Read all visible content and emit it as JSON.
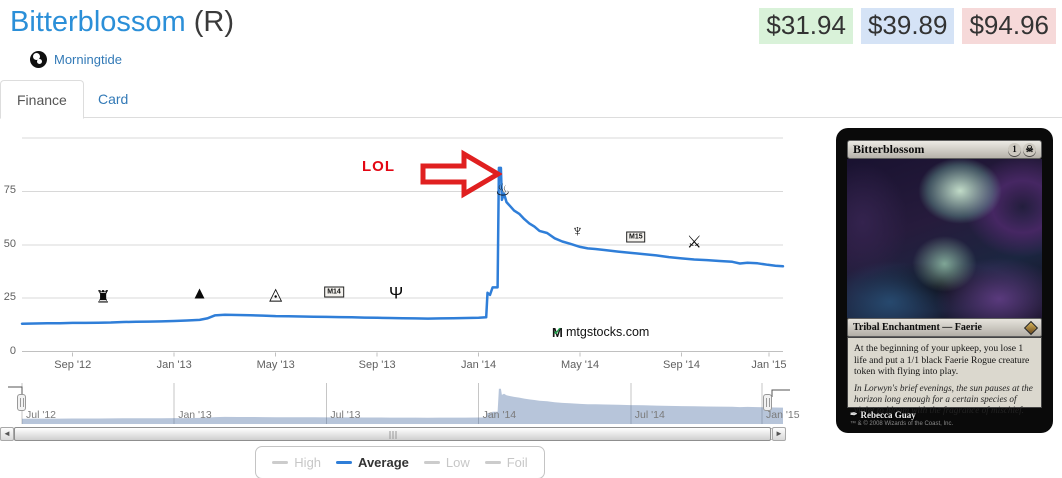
{
  "header": {
    "title": "Bitterblossom",
    "rarity": "(R)",
    "set_name": "Morningtide"
  },
  "price_badges": [
    {
      "kind": "low",
      "value": "$31.94",
      "bg": "#d9f2d9"
    },
    {
      "kind": "average",
      "value": "$39.89",
      "bg": "#d5e3f6"
    },
    {
      "kind": "high",
      "value": "$94.96",
      "bg": "#f6d9d9"
    }
  ],
  "tabs": [
    {
      "label": "Finance",
      "active": true
    },
    {
      "label": "Card",
      "active": false
    }
  ],
  "chart_data": {
    "type": "line",
    "title": "",
    "xlabel": "",
    "ylabel": "",
    "ylim": [
      0,
      100
    ],
    "yticks_labeled": [
      0,
      25,
      50,
      75
    ],
    "gridlines": [
      0,
      25,
      50,
      75,
      100
    ],
    "x_months_range": [
      0,
      30
    ],
    "series": [
      {
        "name": "Average",
        "color": "#2f7ed8",
        "points": [
          [
            0,
            13
          ],
          [
            0.5,
            13.1
          ],
          [
            1,
            13.2
          ],
          [
            1.5,
            13.2
          ],
          [
            2,
            13.4
          ],
          [
            2.5,
            13.4
          ],
          [
            3,
            13.5
          ],
          [
            3.5,
            13.6
          ],
          [
            4,
            13.8
          ],
          [
            4.5,
            13.9
          ],
          [
            5,
            14
          ],
          [
            5.5,
            14.1
          ],
          [
            6,
            14.3
          ],
          [
            6.5,
            14.5
          ],
          [
            7,
            14.8
          ],
          [
            7.3,
            15.5
          ],
          [
            7.6,
            16.9
          ],
          [
            8,
            17.2
          ],
          [
            8.5,
            17.1
          ],
          [
            9,
            17
          ],
          [
            9.5,
            16.8
          ],
          [
            10,
            16.6
          ],
          [
            10.5,
            16.5
          ],
          [
            11,
            16.4
          ],
          [
            11.5,
            16.3
          ],
          [
            12,
            16.2
          ],
          [
            12.5,
            16.1
          ],
          [
            13,
            16
          ],
          [
            13.5,
            15.9
          ],
          [
            14,
            15.8
          ],
          [
            14.5,
            15.7
          ],
          [
            15,
            15.6
          ],
          [
            15.5,
            15.5
          ],
          [
            16,
            15.4
          ],
          [
            16.5,
            15.5
          ],
          [
            17,
            15.6
          ],
          [
            17.5,
            15.7
          ],
          [
            18,
            15.8
          ],
          [
            18.3,
            16
          ],
          [
            18.35,
            27.5
          ],
          [
            18.45,
            26.5
          ],
          [
            18.55,
            30
          ],
          [
            18.75,
            30
          ],
          [
            18.8,
            86
          ],
          [
            18.88,
            86
          ],
          [
            18.92,
            71
          ],
          [
            19,
            74
          ],
          [
            19.1,
            70
          ],
          [
            19.25,
            68
          ],
          [
            19.4,
            66
          ],
          [
            19.6,
            64.5
          ],
          [
            19.8,
            62
          ],
          [
            20,
            60
          ],
          [
            20.2,
            58.5
          ],
          [
            20.4,
            56.5
          ],
          [
            20.7,
            55.5
          ],
          [
            21,
            53
          ],
          [
            21.3,
            51.5
          ],
          [
            21.6,
            50.5
          ],
          [
            22,
            49
          ],
          [
            22.3,
            48.3
          ],
          [
            22.6,
            48
          ],
          [
            23,
            47.5
          ],
          [
            23.5,
            46.8
          ],
          [
            24,
            46.2
          ],
          [
            24.5,
            45.6
          ],
          [
            25,
            45
          ],
          [
            25.5,
            44.2
          ],
          [
            26,
            43.6
          ],
          [
            26.5,
            43.1
          ],
          [
            27,
            42.8
          ],
          [
            27.5,
            42.4
          ],
          [
            28,
            42
          ],
          [
            28.3,
            41.2
          ],
          [
            28.6,
            41.6
          ],
          [
            29,
            41.3
          ],
          [
            29.4,
            40.6
          ],
          [
            29.7,
            40.2
          ],
          [
            30,
            39.9
          ]
        ]
      }
    ],
    "xticks": [
      {
        "t": 2,
        "label": "Sep '12"
      },
      {
        "t": 6,
        "label": "Jan '13"
      },
      {
        "t": 10,
        "label": "May '13"
      },
      {
        "t": 14,
        "label": "Sep '13"
      },
      {
        "t": 18,
        "label": "Jan '14"
      },
      {
        "t": 22,
        "label": "May '14"
      },
      {
        "t": 26,
        "label": "Sep '14"
      },
      {
        "t": 30,
        "label": "Jan '15"
      }
    ],
    "flags": [
      {
        "name": "return-to-ravnica",
        "glyph": "♜",
        "t": 3.2,
        "v": 25.5,
        "style": "glyph"
      },
      {
        "name": "gatecrash",
        "glyph": "▲",
        "t": 7.0,
        "v": 27.6,
        "style": "glyph"
      },
      {
        "name": "dragons-maze",
        "glyph": "◬",
        "t": 10.0,
        "v": 26.9,
        "style": "glyph"
      },
      {
        "name": "m14",
        "glyph": "M14",
        "t": 12.3,
        "v": 28.1,
        "style": "box"
      },
      {
        "name": "theros",
        "glyph": "Ψ",
        "t": 14.75,
        "v": 27.2,
        "style": "glyph"
      },
      {
        "name": "born-of-the-gods",
        "glyph": "♨",
        "t": 18.95,
        "v": 75.6,
        "style": "glyph"
      },
      {
        "name": "journey-into-nyx",
        "glyph": "♆",
        "t": 21.9,
        "v": 56.4,
        "style": "glyph"
      },
      {
        "name": "m15",
        "glyph": "M15",
        "t": 24.2,
        "v": 53.4,
        "style": "box"
      },
      {
        "name": "khans-of-tarkir",
        "glyph": "⚔",
        "t": 26.5,
        "v": 51.5,
        "style": "glyph"
      }
    ],
    "annotation_text": "LOL",
    "watermark": "mtgstocks.com",
    "navigator_ticks": [
      {
        "t": 0,
        "label": "Jul '12"
      },
      {
        "t": 6,
        "label": "Jan '13"
      },
      {
        "t": 12,
        "label": "Jul '13"
      },
      {
        "t": 18,
        "label": "Jan '14"
      },
      {
        "t": 24,
        "label": "Jul '14"
      },
      {
        "t": 30,
        "label": "Jan '15"
      }
    ],
    "legend_position": "bottom-center",
    "grid": "horizontal-only"
  },
  "legend": {
    "items": [
      {
        "label": "High",
        "active": false,
        "color": "#cccccc"
      },
      {
        "label": "Average",
        "active": true,
        "color": "#2f7ed8"
      },
      {
        "label": "Low",
        "active": false,
        "color": "#cccccc"
      },
      {
        "label": "Foil",
        "active": false,
        "color": "#cccccc"
      }
    ]
  },
  "card": {
    "title": "Bitterblossom",
    "mana_generic": "1",
    "mana_black_symbol": "☠",
    "type_line": "Tribal Enchantment — Faerie",
    "rules_text": "At the beginning of your upkeep, you lose 1 life and put a 1/1 black Faerie Rogue creature token with flying into play.",
    "flavor_text": "In Lorwyn's brief evenings, the sun pauses at the horizon long enough for a certain species of violet to bloom with the fragrance of mischief.",
    "artist": "Rebecca Guay",
    "copyright": "™ & © 2008 Wizards of the Coast, Inc."
  }
}
